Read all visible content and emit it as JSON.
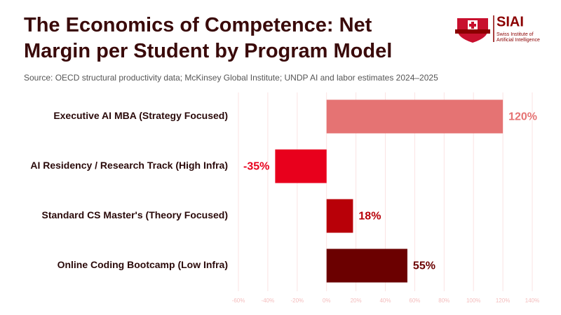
{
  "chart_data": {
    "type": "hbar",
    "title": "The Economics of Competence: Net Margin per Student by Program Model",
    "subtitle": "Source: OECD structural productivity data; McKinsey Global Institute; UNDP AI and labor estimates 2024–2025",
    "logo": {
      "name": "SIAI",
      "line1": "Swiss Institute of",
      "line2": "Artificial Intelligence"
    },
    "categories": [
      "Executive AI MBA (Strategy Focused)",
      "AI Residency / Research Track (High Infra)",
      "Standard CS Master's (Theory Focused)",
      "Online Coding Bootcamp (Low Infra)"
    ],
    "values": [
      120,
      -35,
      18,
      55
    ],
    "value_labels": [
      "120%",
      "-35%",
      "18%",
      "55%"
    ],
    "colors": [
      "#e57373",
      "#e8001c",
      "#b80008",
      "#6b0000"
    ],
    "xlim": [
      -60,
      140
    ],
    "xticks": [
      {
        "value": -60,
        "label": "-60%"
      },
      {
        "value": -40,
        "label": "-40%"
      },
      {
        "value": -20,
        "label": "-20%"
      },
      {
        "value": 0,
        "label": "0%"
      },
      {
        "value": 20,
        "label": "20%"
      },
      {
        "value": 40,
        "label": "40%"
      },
      {
        "value": 60,
        "label": "60%"
      },
      {
        "value": 80,
        "label": "80%"
      },
      {
        "value": 100,
        "label": "100%"
      },
      {
        "value": 120,
        "label": "120%"
      },
      {
        "value": 140,
        "label": "140%"
      }
    ],
    "grid": true
  }
}
